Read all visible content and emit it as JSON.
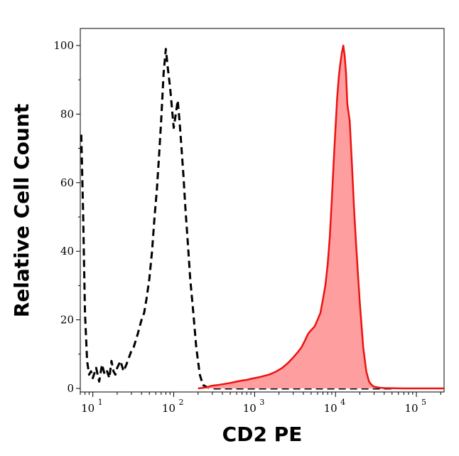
{
  "chart_data": {
    "type": "area",
    "xlabel": "CD2 PE",
    "ylabel": "Relative Cell Count",
    "x_scale": "log",
    "xlim": [
      7,
      220000
    ],
    "ylim": [
      0,
      105
    ],
    "x_ticks": [
      {
        "value": 10,
        "base": "10",
        "exp": "1"
      },
      {
        "value": 100,
        "base": "10",
        "exp": "2"
      },
      {
        "value": 1000,
        "base": "10",
        "exp": "3"
      },
      {
        "value": 10000,
        "base": "10",
        "exp": "4"
      },
      {
        "value": 100000,
        "base": "10",
        "exp": "5"
      }
    ],
    "y_ticks": [
      {
        "value": 0,
        "label": "0"
      },
      {
        "value": 20,
        "label": "20"
      },
      {
        "value": 40,
        "label": "40"
      },
      {
        "value": 60,
        "label": "60"
      },
      {
        "value": 80,
        "label": "80"
      },
      {
        "value": 100,
        "label": "100"
      }
    ],
    "grid": false,
    "series": [
      {
        "style": "dashed",
        "color": "#000000",
        "x": [
          7.2,
          7.6,
          8,
          8.5,
          9,
          9.5,
          10,
          11,
          12,
          13,
          14,
          15,
          16,
          17,
          18,
          19,
          20,
          22,
          24,
          26,
          28,
          30,
          32,
          34,
          36,
          38,
          40,
          43,
          46,
          50,
          54,
          58,
          62,
          66,
          70,
          75,
          80,
          85,
          90,
          95,
          100,
          106,
          112,
          118,
          125,
          132,
          140,
          150,
          160,
          175,
          190,
          210,
          230,
          260,
          300,
          400,
          600,
          1000,
          2000,
          5000,
          10000,
          50000
        ],
        "y": [
          74,
          50,
          22,
          8,
          4,
          5,
          3,
          6,
          2,
          7,
          4,
          5,
          3,
          8,
          5,
          4,
          6,
          8,
          5,
          7,
          9,
          11,
          12,
          14,
          16,
          18,
          20,
          22,
          26,
          32,
          40,
          50,
          58,
          68,
          78,
          92,
          99,
          93,
          88,
          82,
          76,
          80,
          84,
          78,
          70,
          62,
          52,
          42,
          32,
          22,
          12,
          4,
          1,
          0.3,
          0,
          0,
          0,
          0,
          0,
          0,
          0,
          0
        ]
      },
      {
        "style": "filled",
        "color": "#ee1111",
        "fill": "#fe9e9e",
        "x": [
          200,
          250,
          300,
          350,
          400,
          500,
          600,
          700,
          800,
          900,
          1000,
          1200,
          1500,
          1800,
          2200,
          2600,
          3000,
          3400,
          3800,
          4200,
          4600,
          5000,
          5500,
          6000,
          6500,
          7000,
          7500,
          8000,
          8500,
          9000,
          9500,
          10000,
          10500,
          11000,
          11500,
          12000,
          12500,
          13000,
          13500,
          14000,
          15000,
          16000,
          17000,
          18000,
          19000,
          20000,
          22000,
          24000,
          26000,
          28000,
          30000,
          35000,
          40000,
          50000,
          70000,
          100000,
          150000,
          220000
        ],
        "y": [
          0,
          0.3,
          0.8,
          1,
          1.2,
          1.6,
          2,
          2.3,
          2.5,
          2.8,
          3,
          3.4,
          4,
          4.8,
          6,
          7.5,
          9,
          10.5,
          12,
          14,
          16,
          17,
          18,
          20,
          22,
          26,
          30,
          36,
          44,
          55,
          66,
          76,
          85,
          91,
          95,
          98,
          100,
          97,
          92,
          83,
          78,
          65,
          52,
          42,
          33,
          25,
          12,
          5,
          2,
          1,
          0.5,
          0.2,
          0.1,
          0.05,
          0,
          0,
          0,
          0
        ]
      }
    ]
  }
}
